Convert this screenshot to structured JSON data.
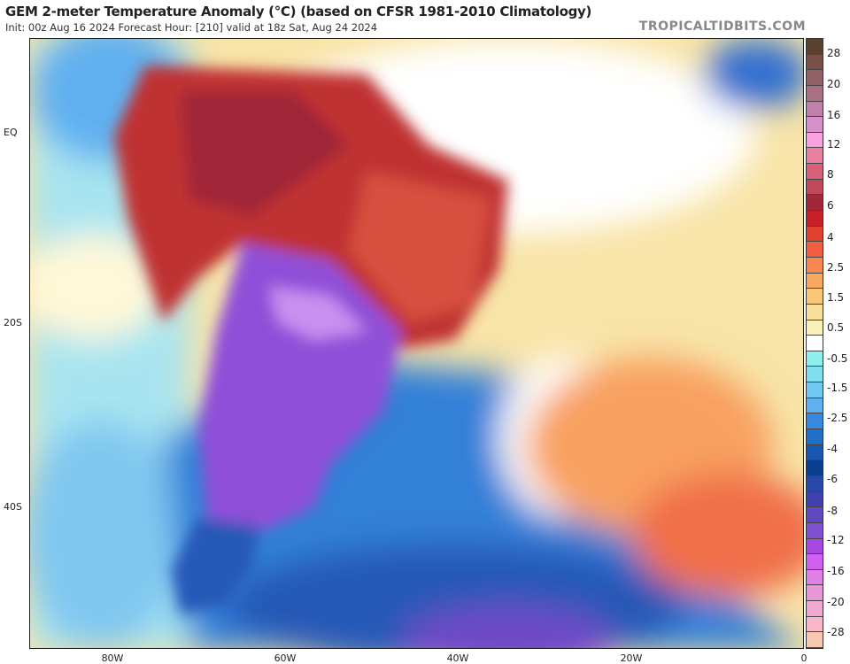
{
  "header": {
    "title": "GEM 2-meter Temperature Anomaly (°C) (based on CFSR 1981-2010 Climatology)",
    "subtitle": "Init: 00z Aug 16 2024   Forecast Hour: [210]   valid at 18z Sat, Aug 24 2024",
    "brand": "TROPICALTIDBITS.COM"
  },
  "axes": {
    "lat_labels": [
      "EQ",
      "20S",
      "40S"
    ],
    "lon_labels": [
      "80W",
      "60W",
      "40W",
      "20W",
      "0"
    ]
  },
  "colorbar": {
    "labels": [
      "28",
      "20",
      "16",
      "12",
      "8",
      "6",
      "4",
      "2.5",
      "1.5",
      "0.5",
      "-0.5",
      "-1.5",
      "-2.5",
      "-4",
      "-6",
      "-8",
      "-12",
      "-16",
      "-20",
      "-28"
    ],
    "colors": [
      "#5c4030",
      "#7a5048",
      "#946068",
      "#a87080",
      "#c080a8",
      "#d890c8",
      "#f8a0e0",
      "#e880a0",
      "#d86078",
      "#c04858",
      "#a02838",
      "#c82028",
      "#e04030",
      "#f06040",
      "#f88850",
      "#f8a860",
      "#f8c878",
      "#f8e098",
      "#f8f0b8",
      "#ffffff",
      "#90f0f0",
      "#80e0f0",
      "#70c8f0",
      "#60b0f0",
      "#3888e0",
      "#2070c8",
      "#1858b0",
      "#0a4090",
      "#2848a8",
      "#4040b0",
      "#6048c0",
      "#8050d0",
      "#a848e0",
      "#d060f0",
      "#e080e8",
      "#e898d8",
      "#f0a8d0",
      "#f8b8c8",
      "#f8c8b0"
    ]
  }
}
